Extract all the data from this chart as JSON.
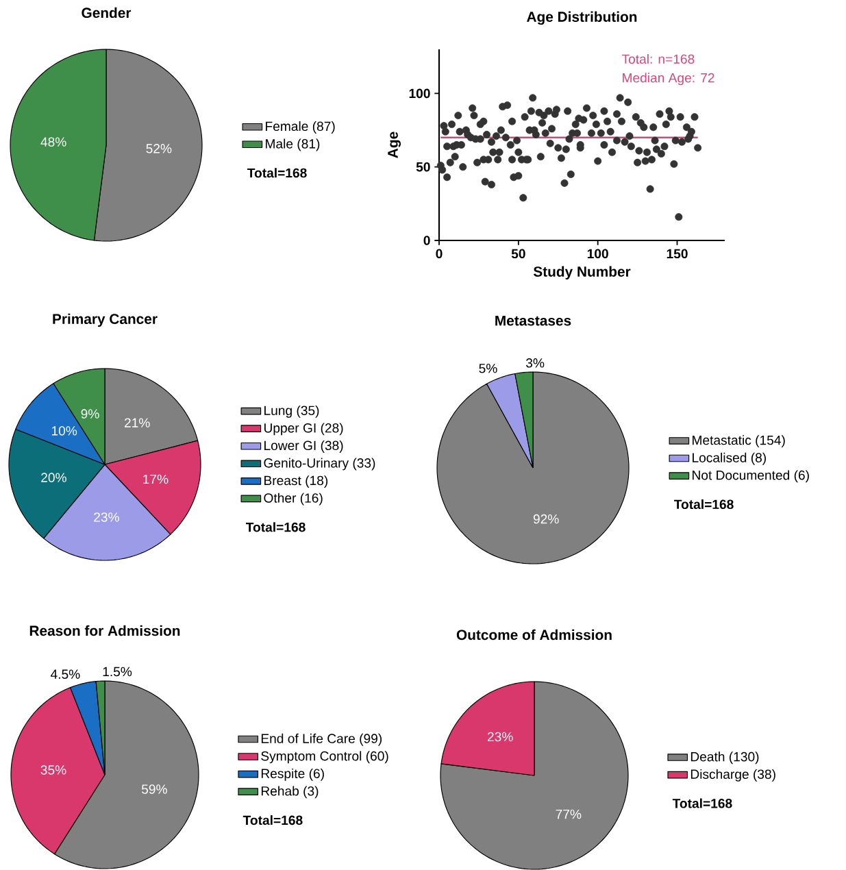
{
  "chart_data": [
    {
      "type": "pie",
      "title": "Gender",
      "categories": [
        "Female (87)",
        "Male (81)"
      ],
      "values": [
        52,
        48
      ],
      "colors": [
        "#808080",
        "#3f8f4a"
      ],
      "value_labels": [
        "52%",
        "48%"
      ],
      "legend": "right",
      "annotations": [
        "Total=168"
      ]
    },
    {
      "type": "scatter",
      "title": "Age Distribution",
      "xlabel": "Study Number",
      "ylabel": "Age",
      "color": "#333333",
      "marker": "circle",
      "xlim": [
        0,
        180
      ],
      "ylim": [
        0,
        130
      ],
      "xticks": [
        0,
        50,
        100,
        150
      ],
      "yticks": [
        0,
        50,
        100
      ],
      "x": [
        1,
        2,
        3,
        4,
        5,
        5,
        7,
        8,
        9,
        10,
        11,
        12,
        13,
        14,
        15,
        17,
        18,
        20,
        21,
        22,
        23,
        24,
        26,
        26,
        28,
        28,
        29,
        30,
        31,
        33,
        33,
        34,
        36,
        37,
        38,
        39,
        40,
        42,
        43,
        45,
        46,
        46,
        47,
        49,
        50,
        50,
        52,
        53,
        54,
        55,
        56,
        57,
        58,
        59,
        60,
        61,
        63,
        64,
        65,
        66,
        67,
        69,
        70,
        71,
        73,
        74,
        75,
        77,
        79,
        80,
        81,
        82,
        83,
        84,
        86,
        88,
        89,
        87,
        89,
        91,
        93,
        96,
        97,
        99,
        100,
        102,
        104,
        104,
        106,
        108,
        109,
        112,
        112,
        114,
        115,
        117,
        119,
        120,
        121,
        124,
        125,
        126,
        127,
        129,
        130,
        131,
        133,
        134,
        135,
        136,
        137,
        139,
        140,
        142,
        143,
        145,
        146,
        148,
        149,
        151,
        152,
        153,
        156,
        157,
        158,
        159,
        161,
        163
      ],
      "values": [
        51,
        48,
        78,
        74,
        43,
        64,
        53,
        79,
        64,
        57,
        65,
        85,
        74,
        65,
        50,
        75,
        72,
        70,
        90,
        85,
        69,
        53,
        69,
        79,
        55,
        81,
        40,
        72,
        55,
        38,
        67,
        60,
        71,
        55,
        60,
        75,
        91,
        70,
        92,
        65,
        81,
        55,
        43,
        68,
        44,
        60,
        55,
        29,
        84,
        55,
        55,
        75,
        88,
        97,
        75,
        72,
        87,
        57,
        80,
        85,
        73,
        88,
        66,
        76,
        86,
        89,
        63,
        56,
        39,
        62,
        88,
        69,
        45,
        73,
        79,
        83,
        63,
        73,
        65,
        82,
        90,
        73,
        85,
        79,
        54,
        73,
        88,
        65,
        81,
        74,
        60,
        86,
        68,
        97,
        81,
        67,
        94,
        71,
        64,
        84,
        53,
        61,
        80,
        77,
        54,
        60,
        35,
        55,
        77,
        68,
        62,
        86,
        59,
        64,
        79,
        88,
        84,
        52,
        68,
        16,
        84,
        67,
        77,
        69,
        71,
        74,
        84,
        63
      ],
      "ref_lines": [
        {
          "axis": "y",
          "value": 70,
          "color": "#d9457a"
        }
      ],
      "annotations": [
        "Total: n=168",
        "Median Age: 72"
      ]
    },
    {
      "type": "pie",
      "title": "Primary Cancer",
      "categories": [
        "Lung (35)",
        "Upper GI (28)",
        "Lower GI (38)",
        "Genito-Urinary (33)",
        "Breast (18)",
        "Other (16)"
      ],
      "values": [
        21,
        17,
        23,
        20,
        10,
        9
      ],
      "colors": [
        "#808080",
        "#d9386d",
        "#9b9be8",
        "#0b6e78",
        "#1a6ec4",
        "#3f8f4a"
      ],
      "value_labels": [
        "21%",
        "17%",
        "23%",
        "20%",
        "10%",
        "9%"
      ],
      "legend": "right",
      "annotations": [
        "Total=168"
      ]
    },
    {
      "type": "pie",
      "title": "Metastases",
      "categories": [
        "Metastatic (154)",
        "Localised (8)",
        "Not Documented (6)"
      ],
      "values": [
        92,
        5,
        3
      ],
      "colors": [
        "#808080",
        "#9b9be8",
        "#3f8f4a"
      ],
      "value_labels": [
        "92%",
        "5%",
        "3%"
      ],
      "legend": "right",
      "annotations": [
        "Total=168"
      ]
    },
    {
      "type": "pie",
      "title": "Reason for Admission",
      "categories": [
        "End of Life Care (99)",
        "Symptom Control (60)",
        "Respite (6)",
        "Rehab (3)"
      ],
      "values": [
        59,
        35,
        4.5,
        1.5
      ],
      "colors": [
        "#808080",
        "#d9386d",
        "#1a6ec4",
        "#3f8f4a"
      ],
      "value_labels": [
        "59%",
        "35%",
        "4.5%",
        "1.5%"
      ],
      "legend": "right",
      "annotations": [
        "Total=168"
      ]
    },
    {
      "type": "pie",
      "title": "Outcome of Admission",
      "categories": [
        "Death (130)",
        "Discharge (38)"
      ],
      "values": [
        77,
        23
      ],
      "colors": [
        "#808080",
        "#d9386d"
      ],
      "value_labels": [
        "77%",
        "23%"
      ],
      "legend": "right",
      "annotations": [
        "Total=168"
      ]
    }
  ]
}
